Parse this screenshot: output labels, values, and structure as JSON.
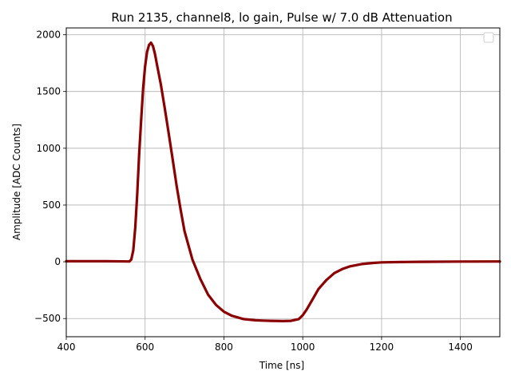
{
  "chart_data": {
    "type": "scatter",
    "title": "Run 2135, channel8, lo gain, Pulse w/ 7.0 dB Attenuation",
    "xlabel": "Time [ns]",
    "ylabel": "Amplitude [ADC Counts]",
    "xlim": [
      400,
      1500
    ],
    "ylim": [
      -660,
      2060
    ],
    "xticks": [
      400,
      600,
      800,
      1000,
      1200,
      1400
    ],
    "yticks": [
      -500,
      0,
      500,
      1000,
      1500,
      2000
    ],
    "grid": true,
    "legend": "top-right, empty",
    "series": [
      {
        "color": "#8b0000",
        "x": [
          400,
          500,
          560,
          565,
          570,
          575,
          580,
          585,
          590,
          595,
          600,
          605,
          610,
          615,
          620,
          625,
          630,
          640,
          650,
          660,
          670,
          680,
          690,
          700,
          720,
          740,
          760,
          780,
          800,
          820,
          850,
          880,
          900,
          920,
          950,
          970,
          990,
          1000,
          1010,
          1020,
          1030,
          1040,
          1060,
          1080,
          1100,
          1120,
          1150,
          1180,
          1200,
          1250,
          1300,
          1400,
          1500
        ],
        "y": [
          5,
          5,
          3,
          20,
          100,
          300,
          600,
          950,
          1250,
          1530,
          1720,
          1850,
          1910,
          1930,
          1900,
          1830,
          1740,
          1560,
          1350,
          1130,
          900,
          670,
          460,
          270,
          20,
          -150,
          -290,
          -380,
          -440,
          -475,
          -505,
          -515,
          -518,
          -520,
          -522,
          -520,
          -505,
          -470,
          -420,
          -360,
          -300,
          -240,
          -160,
          -100,
          -65,
          -40,
          -20,
          -10,
          -5,
          -2,
          0,
          2,
          3
        ]
      }
    ]
  }
}
